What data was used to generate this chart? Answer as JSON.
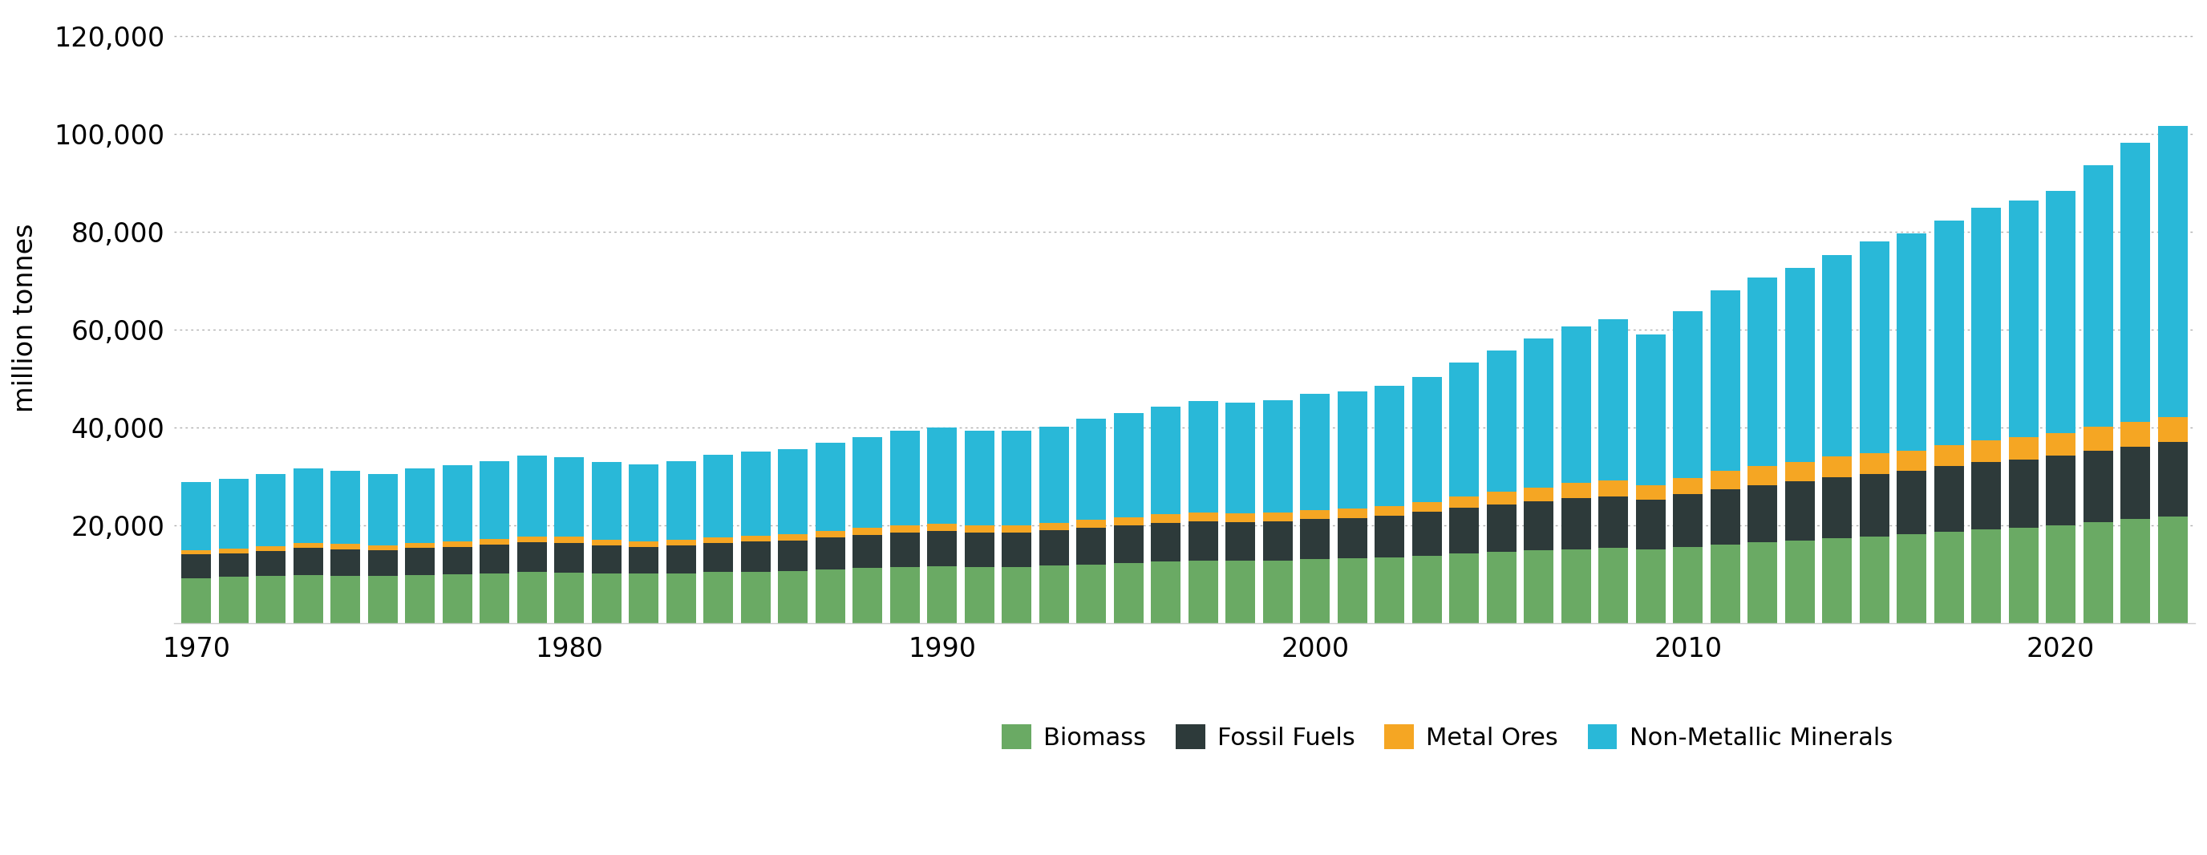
{
  "years": [
    1970,
    1971,
    1972,
    1973,
    1974,
    1975,
    1976,
    1977,
    1978,
    1979,
    1980,
    1981,
    1982,
    1983,
    1984,
    1985,
    1986,
    1987,
    1988,
    1989,
    1990,
    1991,
    1992,
    1993,
    1994,
    1995,
    1996,
    1997,
    1998,
    1999,
    2000,
    2001,
    2002,
    2003,
    2004,
    2005,
    2006,
    2007,
    2008,
    2009,
    2010,
    2011,
    2012,
    2013,
    2014,
    2015,
    2016,
    2017,
    2018,
    2019,
    2020,
    2021,
    2022,
    2023
  ],
  "biomass": [
    9200,
    9400,
    9600,
    9800,
    9700,
    9600,
    9800,
    10000,
    10200,
    10400,
    10300,
    10100,
    10100,
    10200,
    10400,
    10500,
    10600,
    10900,
    11200,
    11400,
    11600,
    11500,
    11500,
    11700,
    12000,
    12200,
    12500,
    12700,
    12700,
    12800,
    13000,
    13200,
    13400,
    13800,
    14200,
    14500,
    14800,
    15100,
    15300,
    15100,
    15600,
    16100,
    16500,
    16900,
    17300,
    17700,
    18100,
    18700,
    19200,
    19500,
    20000,
    20700,
    21200,
    21800
  ],
  "fossil_fuels": [
    4800,
    4900,
    5100,
    5500,
    5400,
    5200,
    5500,
    5600,
    5800,
    6100,
    6100,
    5800,
    5500,
    5700,
    6000,
    6200,
    6300,
    6600,
    6800,
    7100,
    7200,
    7000,
    7000,
    7200,
    7500,
    7700,
    7900,
    8100,
    7900,
    8000,
    8200,
    8300,
    8600,
    8900,
    9300,
    9700,
    10100,
    10500,
    10600,
    10100,
    10800,
    11300,
    11700,
    12100,
    12500,
    12800,
    13000,
    13400,
    13700,
    13900,
    14200,
    14500,
    14900,
    15200
  ],
  "metal_ores": [
    900,
    950,
    1000,
    1100,
    1050,
    1000,
    1050,
    1100,
    1150,
    1200,
    1200,
    1150,
    1100,
    1100,
    1150,
    1200,
    1200,
    1300,
    1400,
    1500,
    1500,
    1450,
    1450,
    1500,
    1650,
    1700,
    1800,
    1850,
    1800,
    1800,
    1900,
    1900,
    1950,
    2100,
    2400,
    2600,
    2800,
    3100,
    3200,
    2900,
    3300,
    3700,
    3900,
    4000,
    4200,
    4200,
    4100,
    4300,
    4500,
    4600,
    4700,
    4900,
    5100,
    5200
  ],
  "non_metallic": [
    14000,
    14300,
    14700,
    15300,
    15000,
    14600,
    15200,
    15500,
    16000,
    16500,
    16300,
    15900,
    15800,
    16100,
    16800,
    17100,
    17400,
    18000,
    18700,
    19300,
    19700,
    19300,
    19300,
    19700,
    20700,
    21400,
    22000,
    22700,
    22700,
    23000,
    23700,
    23900,
    24500,
    25600,
    27400,
    29000,
    30500,
    32000,
    33100,
    31000,
    34100,
    37000,
    38500,
    39700,
    41200,
    43300,
    44500,
    46000,
    47500,
    48500,
    49500,
    53500,
    57000,
    59500
  ],
  "colors": {
    "biomass": "#6aaa64",
    "fossil_fuels": "#2d3a3a",
    "metal_ores": "#f5a623",
    "non_metallic": "#29b8d8"
  },
  "ylabel": "million tonnes",
  "ylim": [
    0,
    125000
  ],
  "yticks": [
    20000,
    40000,
    60000,
    80000,
    100000,
    120000
  ],
  "xticks": [
    1970,
    1980,
    1990,
    2000,
    2010,
    2020
  ],
  "legend_labels": [
    "Biomass",
    "Fossil Fuels",
    "Metal Ores",
    "Non-Metallic Minerals"
  ],
  "background_color": "#ffffff",
  "grid_color": "#b0b0b0",
  "bar_width": 0.8
}
